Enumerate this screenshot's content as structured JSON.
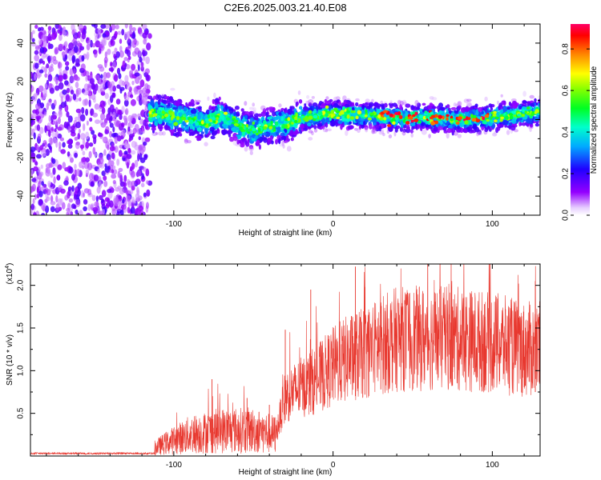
{
  "title": "C2E6.2025.003.21.40.E08",
  "chart_data": [
    {
      "type": "heatmap",
      "xlabel": "Height of straight line (km)",
      "ylabel": "Frequency (Hz)",
      "xlim": [
        -190,
        130
      ],
      "ylim": [
        -50,
        50
      ],
      "x_ticks": [
        -100,
        0,
        100
      ],
      "y_ticks": [
        -40,
        -20,
        0,
        20,
        40
      ],
      "colorbar": {
        "label": "Normalized spectral amplitude",
        "range": [
          0,
          0.92
        ],
        "ticks": [
          "0.0",
          "0.2",
          "0.4",
          "0.6",
          "0.8"
        ],
        "ticks_values": [
          0,
          0.2,
          0.4,
          0.6,
          0.8
        ]
      },
      "regions": [
        {
          "x_range": [
            -190,
            -115
          ],
          "pattern": "scattered noise across all frequencies"
        },
        {
          "x_range": [
            -115,
            130
          ],
          "pattern": "band near 0 Hz",
          "centerline": [
            [
              -110,
              3
            ],
            [
              -90,
              0
            ],
            [
              -80,
              -2
            ],
            [
              -70,
              2
            ],
            [
              -60,
              -3
            ],
            [
              -50,
              -6
            ],
            [
              -40,
              -3
            ],
            [
              -30,
              -2
            ],
            [
              -20,
              1
            ],
            [
              0,
              3
            ],
            [
              20,
              2
            ],
            [
              40,
              1
            ],
            [
              60,
              1
            ],
            [
              80,
              0
            ],
            [
              100,
              1
            ],
            [
              120,
              3
            ],
            [
              130,
              4
            ]
          ]
        }
      ]
    },
    {
      "type": "line",
      "xlabel": "Height of straight line (km)",
      "ylabel": "SNR (10 * v/v)",
      "y_multiplier": "(x10",
      "y_multiplier_exp": "4",
      "y_multiplier_close": ")",
      "xlim": [
        -190,
        130
      ],
      "ylim": [
        0,
        2.25
      ],
      "x_ticks": [
        -100,
        0,
        100
      ],
      "y_ticks": [
        0.5,
        1.0,
        1.5,
        2.0
      ],
      "y_tick_labels": [
        "0.5",
        "1.0",
        "1.5",
        "2.0"
      ],
      "series": [
        {
          "color": "#e8382f",
          "envelope": [
            [
              -190,
              0.03
            ],
            [
              -120,
              0.03
            ],
            [
              -105,
              0.15
            ],
            [
              -90,
              0.25
            ],
            [
              -70,
              0.3
            ],
            [
              -50,
              0.3
            ],
            [
              -36,
              0.25
            ],
            [
              -30,
              0.7
            ],
            [
              -20,
              0.8
            ],
            [
              -10,
              0.9
            ],
            [
              0,
              1.05
            ],
            [
              10,
              1.15
            ],
            [
              20,
              1.2
            ],
            [
              30,
              1.3
            ],
            [
              40,
              1.37
            ],
            [
              60,
              1.38
            ],
            [
              80,
              1.37
            ],
            [
              100,
              1.33
            ],
            [
              120,
              1.25
            ],
            [
              130,
              1.25
            ]
          ],
          "spikes": [
            [
              -76,
              0.9
            ],
            [
              -54,
              0.68
            ],
            [
              -40,
              0.6
            ],
            [
              -30,
              1.48
            ],
            [
              -14,
              1.95
            ],
            [
              14,
              2.22
            ],
            [
              20,
              1.98
            ],
            [
              30,
              1.8
            ],
            [
              75,
              1.75
            ],
            [
              95,
              1.78
            ],
            [
              127,
              2.05
            ]
          ]
        }
      ]
    }
  ]
}
